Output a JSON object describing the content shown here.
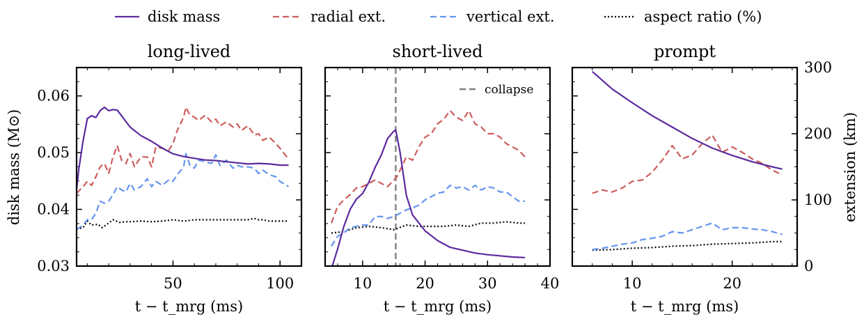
{
  "legend": [
    {
      "label": "disk mass",
      "color": "#5b2a9e",
      "dash": "solid"
    },
    {
      "label": "radial ext.",
      "color": "#cd5c5c",
      "dash": "dashed"
    },
    {
      "label": "vertical ext.",
      "color": "#6495ed",
      "dash": "dashed"
    },
    {
      "label": "aspect ratio (%)",
      "color": "#000000",
      "dash": "dotted"
    }
  ],
  "axes": {
    "left_ylabel": "disk mass (M⊙)",
    "right_ylabel": "extension (km)",
    "xlabel": "t − t_mrg (ms)",
    "left_ylim": [
      0.03,
      0.065
    ],
    "left_yticks": [
      "0.03",
      "0.04",
      "0.05",
      "0.06"
    ],
    "right_ylim": [
      0,
      300
    ],
    "right_yticks": [
      "0",
      "100",
      "200",
      "300"
    ]
  },
  "chart_data": [
    {
      "type": "line",
      "title": "long-lived",
      "xlim": [
        5,
        110
      ],
      "xticks": [
        50,
        100
      ],
      "series": [
        {
          "name": "disk mass",
          "axis": "left",
          "x": [
            5,
            6,
            8,
            10,
            12,
            14,
            16,
            18,
            20,
            22,
            24,
            26,
            28,
            30,
            35,
            40,
            45,
            50,
            55,
            60,
            65,
            70,
            75,
            80,
            85,
            90,
            95,
            100,
            104
          ],
          "y": [
            0.0435,
            0.047,
            0.052,
            0.056,
            0.0565,
            0.0562,
            0.0574,
            0.058,
            0.0574,
            0.0576,
            0.0575,
            0.0565,
            0.0555,
            0.0545,
            0.053,
            0.052,
            0.0508,
            0.0498,
            0.0493,
            0.049,
            0.0487,
            0.0486,
            0.0484,
            0.0482,
            0.048,
            0.0481,
            0.048,
            0.0478,
            0.0478
          ]
        },
        {
          "name": "radial ext.",
          "axis": "right",
          "x": [
            5,
            8,
            10,
            12,
            14,
            16,
            18,
            20,
            22,
            24,
            26,
            28,
            30,
            32,
            35,
            38,
            40,
            42,
            45,
            48,
            50,
            52,
            55,
            56,
            58,
            60,
            62,
            65,
            68,
            70,
            72,
            75,
            78,
            80,
            82,
            85,
            88,
            90,
            92,
            95,
            98,
            100,
            104
          ],
          "y": [
            110,
            120,
            128,
            122,
            135,
            150,
            155,
            140,
            165,
            182,
            160,
            155,
            170,
            150,
            165,
            165,
            150,
            180,
            178,
            175,
            185,
            205,
            225,
            240,
            228,
            225,
            220,
            228,
            218,
            222,
            212,
            218,
            210,
            215,
            205,
            212,
            198,
            200,
            190,
            195,
            185,
            178,
            162
          ]
        },
        {
          "name": "vertical ext.",
          "axis": "right",
          "x": [
            5,
            8,
            10,
            12,
            14,
            16,
            18,
            20,
            22,
            24,
            26,
            28,
            30,
            32,
            35,
            38,
            40,
            42,
            45,
            48,
            50,
            52,
            55,
            56,
            58,
            60,
            62,
            65,
            68,
            70,
            72,
            75,
            78,
            80,
            82,
            85,
            88,
            90,
            92,
            95,
            98,
            100,
            104
          ],
          "y": [
            55,
            62,
            70,
            70,
            80,
            98,
            95,
            98,
            108,
            120,
            115,
            112,
            125,
            115,
            120,
            132,
            120,
            128,
            122,
            130,
            128,
            138,
            150,
            170,
            152,
            148,
            160,
            158,
            155,
            168,
            152,
            160,
            148,
            152,
            150,
            150,
            148,
            140,
            145,
            138,
            135,
            128,
            120
          ]
        },
        {
          "name": "aspect ratio (%)",
          "axis": "right",
          "x": [
            5,
            8,
            10,
            12,
            15,
            17,
            20,
            22,
            25,
            28,
            30,
            35,
            40,
            45,
            50,
            55,
            60,
            65,
            70,
            75,
            80,
            85,
            88,
            90,
            92,
            95,
            100,
            104
          ],
          "y": [
            56,
            58,
            68,
            62,
            63,
            58,
            65,
            70,
            66,
            67,
            67,
            68,
            67,
            68,
            70,
            68,
            70,
            70,
            70,
            70,
            70,
            70,
            72,
            70,
            70,
            68,
            68,
            68
          ]
        }
      ]
    },
    {
      "type": "line",
      "title": "short-lived",
      "xlim": [
        4,
        40
      ],
      "xticks": [
        10,
        20,
        30,
        40
      ],
      "annotation": {
        "label": "collapse",
        "x": 15.3,
        "color": "#808080"
      },
      "series": [
        {
          "name": "disk mass",
          "axis": "left",
          "x": [
            5,
            6,
            7,
            8,
            9,
            10,
            11,
            12,
            13,
            14,
            15,
            15.3,
            16,
            17,
            18,
            20,
            22,
            24,
            26,
            28,
            30,
            32,
            34,
            36
          ],
          "y": [
            0.0295,
            0.033,
            0.037,
            0.04,
            0.0418,
            0.0428,
            0.0448,
            0.0474,
            0.0496,
            0.0525,
            0.0538,
            0.054,
            0.05,
            0.0425,
            0.039,
            0.0362,
            0.0345,
            0.0333,
            0.0328,
            0.0323,
            0.032,
            0.0318,
            0.0316,
            0.0315
          ]
        },
        {
          "name": "radial ext.",
          "axis": "right",
          "x": [
            5,
            6,
            7,
            8,
            9,
            10,
            11,
            12,
            13,
            14,
            15,
            15.5,
            16,
            17,
            18,
            19,
            20,
            21,
            22,
            23,
            24,
            25,
            26,
            27,
            28,
            29,
            30,
            31,
            32,
            33,
            34,
            35,
            36
          ],
          "y": [
            65,
            90,
            100,
            108,
            118,
            120,
            125,
            130,
            125,
            120,
            130,
            135,
            145,
            165,
            160,
            180,
            195,
            200,
            215,
            222,
            235,
            225,
            220,
            235,
            215,
            210,
            200,
            200,
            195,
            185,
            180,
            175,
            165
          ]
        },
        {
          "name": "vertical ext.",
          "axis": "right",
          "x": [
            5,
            6,
            7,
            8,
            9,
            10,
            11,
            12,
            13,
            14,
            15,
            16,
            17,
            18,
            19,
            20,
            21,
            22,
            23,
            24,
            25,
            26,
            27,
            28,
            29,
            30,
            31,
            32,
            33,
            34,
            35,
            36
          ],
          "y": [
            30,
            45,
            50,
            58,
            60,
            62,
            62,
            75,
            75,
            72,
            75,
            80,
            85,
            88,
            92,
            100,
            105,
            110,
            112,
            122,
            118,
            120,
            115,
            122,
            115,
            120,
            118,
            112,
            112,
            105,
            98,
            98
          ]
        },
        {
          "name": "aspect ratio (%)",
          "axis": "right",
          "x": [
            5,
            7,
            9,
            11,
            13,
            15,
            17,
            19,
            21,
            23,
            25,
            27,
            29,
            31,
            33,
            35,
            36
          ],
          "y": [
            50,
            52,
            58,
            60,
            58,
            55,
            62,
            60,
            60,
            60,
            62,
            60,
            65,
            65,
            67,
            65,
            65
          ]
        }
      ]
    },
    {
      "type": "line",
      "title": "prompt",
      "xlim": [
        4,
        26.5
      ],
      "xticks": [
        10,
        20
      ],
      "series": [
        {
          "name": "disk mass",
          "axis": "left",
          "x": [
            6,
            8,
            10,
            12,
            14,
            16,
            18,
            20,
            22,
            24,
            25
          ],
          "y": [
            0.0643,
            0.0612,
            0.0588,
            0.0565,
            0.0545,
            0.0525,
            0.0508,
            0.0495,
            0.0484,
            0.0475,
            0.0471
          ]
        },
        {
          "name": "radial ext.",
          "axis": "right",
          "x": [
            6,
            7,
            8,
            9,
            10,
            11,
            12,
            13,
            14,
            15,
            16,
            17,
            18,
            19,
            20,
            21,
            22,
            23,
            24,
            25
          ],
          "y": [
            110,
            115,
            112,
            118,
            128,
            130,
            142,
            160,
            182,
            162,
            168,
            185,
            198,
            172,
            180,
            172,
            162,
            155,
            145,
            138
          ]
        },
        {
          "name": "vertical ext.",
          "axis": "right",
          "x": [
            6,
            7,
            8,
            9,
            10,
            11,
            12,
            13,
            14,
            15,
            16,
            17,
            18,
            19,
            20,
            21,
            22,
            23,
            24,
            25
          ],
          "y": [
            25,
            27,
            30,
            33,
            35,
            40,
            42,
            45,
            52,
            50,
            55,
            60,
            65,
            55,
            58,
            58,
            56,
            55,
            52,
            48
          ]
        },
        {
          "name": "aspect ratio (%)",
          "axis": "right",
          "x": [
            6,
            8,
            10,
            12,
            14,
            16,
            18,
            20,
            22,
            24,
            25
          ],
          "y": [
            24,
            25,
            27,
            28,
            30,
            31,
            33,
            34,
            35,
            37,
            37
          ]
        }
      ]
    }
  ]
}
